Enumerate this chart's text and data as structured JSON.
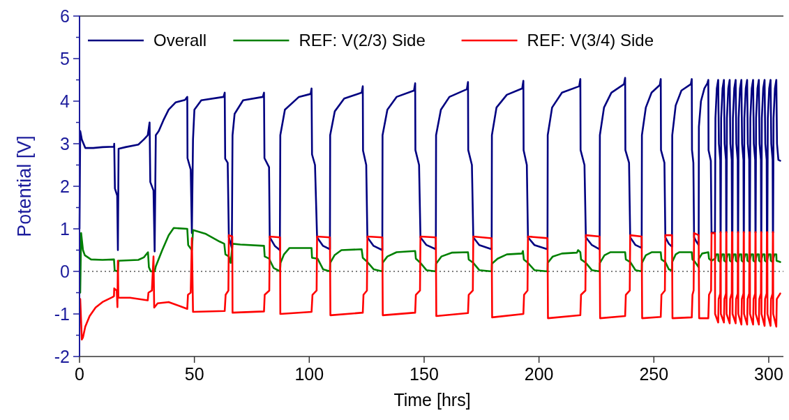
{
  "chart_data": {
    "type": "line",
    "xlabel": "Time [hrs]",
    "ylabel": "Potential [V]",
    "xlim": [
      0,
      307
    ],
    "xticks": [
      0,
      50,
      100,
      150,
      200,
      250,
      300
    ],
    "ylim": [
      -2,
      6
    ],
    "yticks": [
      -2,
      {
        "value": -1.5,
        "label": null
      },
      -1,
      {
        "value": -0.5,
        "label": null
      },
      0,
      {
        "value": 0.5,
        "label": null
      },
      1,
      {
        "value": 1.5,
        "label": null
      },
      2,
      {
        "value": 2.5,
        "label": null
      },
      3,
      {
        "value": 3.5,
        "label": null
      },
      4,
      {
        "value": 4.5,
        "label": null
      },
      5,
      {
        "value": 5.5,
        "label": null
      },
      6
    ],
    "legend": "top",
    "grid": false,
    "line_style": "solid",
    "marker": "none",
    "ref_lines": [
      {
        "axis": "y",
        "value": 0,
        "color": "#555555",
        "line_style": "dotted"
      }
    ],
    "series": [
      {
        "name": "Overall",
        "color": "#000080",
        "x": [
          0,
          0.3,
          1.0,
          2.5,
          6,
          10,
          15.0,
          15.1,
          15.4,
          16.4,
          16.7,
          17.0,
          20,
          25.6,
          28,
          29.7,
          30.5,
          30.8,
          32.2,
          32.7,
          33.2,
          34.5,
          36.5,
          38.8,
          41.8,
          45.9,
          46.9,
          47.0,
          48.4,
          48.9,
          49.4,
          50.0,
          53.0,
          62.7,
          63.2,
          63.4,
          64.5,
          65.0,
          66.3,
          66.6,
          67.5,
          71.2,
          79.8,
          80.3,
          80.5,
          82.5,
          82.8,
          85,
          87.2,
          87.4,
          89.4,
          95.5,
          100.6,
          101.0,
          101.2,
          102.5,
          103.4,
          106,
          109.0,
          109.1,
          111.1,
          115.2,
          122.8,
          123.3,
          123.4,
          124.8,
          125.3,
          128,
          131.8,
          131.9,
          134,
          138,
          145.6,
          146.1,
          146.2,
          147.8,
          148.4,
          151,
          155.1,
          155.2,
          157.3,
          161,
          168.6,
          169.1,
          169.2,
          170.8,
          171.4,
          174,
          179.4,
          179.5,
          181.5,
          186,
          192.7,
          193.2,
          193.3,
          194.7,
          195.2,
          198,
          203.7,
          203.8,
          205.7,
          210,
          217.5,
          218.0,
          218.1,
          219.8,
          220.4,
          223,
          226.4,
          226.5,
          228.3,
          231.5,
          237.0,
          237.5,
          237.6,
          239.2,
          239.7,
          242,
          244.7,
          244.8,
          246.5,
          249,
          252.6,
          253.0,
          253.1,
          254.6,
          255.0,
          256.5,
          257.9,
          258.0,
          259.5,
          262,
          266.1,
          266.5,
          266.6,
          267.2,
          267.5,
          268.5,
          269.5,
          269.6,
          270.5,
          272,
          273.3,
          273.7,
          273.8,
          274.8,
          275.1,
          276.6,
          276.8,
          277.4,
          278.0,
          278.3,
          278.9,
          279.0,
          279.1,
          279.3,
          279.9,
          280.5,
          280.8,
          281.4,
          281.5,
          281.6,
          281.8,
          282.4,
          283.0,
          283.3,
          283.9,
          284.0,
          284.2,
          284.4,
          285.0,
          285.6,
          285.9,
          286.5,
          286.6,
          286.7,
          286.9,
          287.5,
          288.1,
          288.4,
          289.0,
          289.1,
          289.2,
          289.4,
          290.0,
          290.6,
          290.9,
          291.5,
          291.6,
          291.8,
          292.0,
          292.6,
          293.2,
          293.5,
          294.1,
          294.2,
          294.3,
          294.5,
          295.1,
          295.7,
          296.0,
          296.6,
          296.7,
          296.8,
          297.0,
          297.6,
          298.2,
          298.5,
          299.1,
          299.2,
          299.4,
          299.6,
          300.2,
          300.8,
          301.1,
          301.7,
          301.8,
          301.9,
          302.1,
          302.7,
          303.3,
          303.6,
          304.2,
          305.0
        ],
        "values": [
          1.0,
          3.3,
          3.1,
          2.9,
          2.9,
          2.92,
          2.93,
          3.0,
          1.95,
          1.78,
          0.5,
          2.88,
          2.92,
          2.98,
          3.1,
          3.2,
          3.5,
          2.1,
          1.9,
          0.47,
          3.2,
          3.3,
          3.55,
          3.8,
          3.97,
          4.03,
          4.1,
          2.66,
          2.39,
          0.9,
          3.1,
          3.8,
          4.02,
          4.1,
          4.2,
          2.65,
          2.55,
          0.8,
          0.55,
          3.2,
          3.7,
          4.02,
          4.1,
          4.2,
          2.66,
          2.45,
          0.8,
          0.6,
          0.5,
          3.2,
          3.8,
          4.1,
          4.17,
          4.3,
          2.75,
          2.5,
          0.8,
          0.6,
          0.52,
          3.2,
          3.76,
          4.06,
          4.2,
          4.35,
          2.84,
          2.5,
          0.8,
          0.6,
          0.5,
          3.2,
          3.8,
          4.1,
          4.25,
          4.42,
          2.85,
          2.5,
          0.8,
          0.62,
          0.52,
          3.2,
          3.8,
          4.1,
          4.28,
          4.45,
          2.85,
          2.5,
          0.8,
          0.62,
          0.52,
          3.2,
          3.85,
          4.15,
          4.3,
          4.48,
          2.85,
          2.5,
          0.8,
          0.62,
          0.52,
          3.2,
          3.85,
          4.2,
          4.35,
          4.52,
          2.85,
          2.5,
          0.8,
          0.62,
          0.52,
          3.2,
          3.85,
          4.2,
          4.4,
          4.55,
          2.85,
          2.55,
          0.8,
          0.62,
          0.55,
          3.2,
          3.85,
          4.2,
          4.38,
          4.52,
          2.85,
          2.55,
          0.8,
          0.65,
          0.58,
          3.2,
          3.9,
          4.25,
          4.4,
          4.52,
          2.85,
          2.55,
          0.8,
          0.7,
          0.62,
          3.4,
          4.0,
          4.3,
          4.42,
          4.5,
          2.85,
          2.6,
          0.9,
          0.92,
          3.6,
          4.3,
          4.5,
          3.0,
          2.62,
          0.92,
          0.92,
          3.6,
          4.3,
          4.5,
          3.0,
          2.62,
          0.92,
          0.92,
          3.6,
          4.3,
          4.5,
          3.0,
          2.62,
          0.92,
          0.92,
          3.6,
          4.3,
          4.5,
          3.0,
          2.62,
          0.92,
          0.92,
          3.6,
          4.3,
          4.5,
          3.0,
          2.62,
          0.92,
          0.92,
          3.6,
          4.3,
          4.5,
          3.0,
          2.62,
          0.92,
          0.92,
          3.6,
          4.3,
          4.5,
          3.0,
          2.62,
          0.92,
          0.92,
          3.6,
          4.3,
          4.5,
          3.0,
          2.62,
          0.92,
          0.92,
          3.6,
          4.3,
          4.5,
          3.0,
          2.62,
          0.92,
          0.92,
          3.6,
          4.3,
          4.5,
          3.0,
          2.62,
          0.92,
          0.92,
          3.6,
          4.3,
          4.5,
          3.0,
          2.62,
          2.6
        ]
      },
      {
        "name": "REF: V(2/3) Side",
        "color": "#008000",
        "x": [
          0.3,
          0.7,
          1.5,
          2.3,
          5,
          10,
          15.0,
          15.3,
          16.7,
          17.0,
          25.6,
          28,
          29.8,
          30.2,
          31,
          32.7,
          33.2,
          36,
          38.8,
          41,
          46.9,
          47.3,
          48.9,
          49.4,
          55,
          61,
          63.0,
          63.5,
          65.0,
          65.8,
          66.6,
          70,
          80.3,
          80.6,
          82.5,
          84.5,
          87.3,
          87.5,
          89,
          91.4,
          101.0,
          101.2,
          103.6,
          106,
          109.0,
          109.1,
          111,
          114,
          122.8,
          123.3,
          125.3,
          128,
          131.8,
          131.9,
          134,
          138,
          146.1,
          146.4,
          148.4,
          151,
          155.1,
          155.2,
          157.5,
          162,
          169.1,
          169.4,
          171.4,
          174,
          179.4,
          179.5,
          182,
          186,
          192.6,
          193.0,
          193.4,
          195.2,
          198,
          203.7,
          203.8,
          206,
          210,
          216.5,
          217,
          218.0,
          218.3,
          220.4,
          223,
          226.4,
          226.5,
          228.5,
          231,
          237.5,
          237.8,
          239.7,
          242,
          244.7,
          244.8,
          246.5,
          249,
          253.0,
          253.3,
          255,
          256.5,
          257.9,
          258.0,
          259.5,
          261,
          266.5,
          266.8,
          267.5,
          269.5,
          269.6,
          271,
          273.7,
          274.0,
          275.1,
          276.7,
          277.2,
          278.0,
          278.1,
          279.0,
          279.2,
          279.7,
          280.5,
          280.6,
          281.5,
          281.7,
          282.2,
          283.0,
          283.1,
          284.0,
          284.3,
          284.8,
          285.6,
          285.7,
          286.6,
          286.8,
          287.3,
          288.1,
          288.2,
          289.1,
          289.3,
          289.8,
          290.6,
          290.7,
          291.6,
          291.9,
          292.4,
          293.2,
          293.3,
          294.2,
          294.4,
          294.9,
          295.7,
          295.8,
          296.7,
          296.9,
          297.4,
          298.2,
          298.3,
          299.2,
          299.5,
          300.0,
          300.8,
          300.9,
          301.8,
          302.0,
          302.5,
          303.3,
          303.4,
          305.0
        ],
        "values": [
          -0.5,
          0.9,
          0.5,
          0.38,
          0.28,
          0.27,
          0.28,
          0.02,
          0.0,
          0.25,
          0.27,
          0.33,
          0.45,
          0.1,
          0.0,
          0.0,
          0.12,
          0.5,
          0.85,
          1.02,
          1.0,
          0.62,
          0.5,
          0.97,
          0.88,
          0.7,
          0.65,
          0.4,
          0.35,
          0.2,
          0.65,
          0.63,
          0.6,
          0.35,
          0.3,
          0.08,
          0.0,
          0.2,
          0.4,
          0.55,
          0.55,
          0.32,
          0.3,
          0.05,
          0.0,
          0.2,
          0.38,
          0.5,
          0.52,
          0.32,
          0.22,
          0.05,
          0.0,
          0.2,
          0.35,
          0.45,
          0.48,
          0.3,
          0.2,
          0.03,
          0.0,
          0.18,
          0.35,
          0.44,
          0.45,
          0.28,
          0.2,
          0.03,
          0.0,
          0.18,
          0.3,
          0.4,
          0.42,
          0.48,
          0.28,
          0.2,
          0.03,
          0.0,
          0.2,
          0.35,
          0.42,
          0.44,
          0.5,
          0.45,
          0.28,
          0.2,
          0.03,
          0.0,
          0.2,
          0.38,
          0.45,
          0.45,
          0.28,
          0.22,
          0.03,
          0.0,
          0.2,
          0.38,
          0.45,
          0.45,
          0.28,
          0.22,
          0.05,
          0.02,
          0.22,
          0.4,
          0.45,
          0.45,
          0.28,
          0.25,
          0.1,
          0.3,
          0.42,
          0.45,
          0.3,
          0.25,
          0.3,
          0.4,
          0.4,
          0.25,
          0.22,
          0.3,
          0.4,
          0.4,
          0.25,
          0.22,
          0.3,
          0.4,
          0.4,
          0.25,
          0.22,
          0.3,
          0.4,
          0.4,
          0.25,
          0.22,
          0.3,
          0.4,
          0.4,
          0.25,
          0.22,
          0.3,
          0.4,
          0.4,
          0.25,
          0.22,
          0.3,
          0.4,
          0.4,
          0.25,
          0.22,
          0.3,
          0.4,
          0.4,
          0.25,
          0.22,
          0.3,
          0.4,
          0.4,
          0.25,
          0.22,
          0.3,
          0.4,
          0.4,
          0.25,
          0.22,
          0.3,
          0.4,
          0.4,
          0.25,
          0.22
        ]
      },
      {
        "name": "REF: V(3/4) Side",
        "color": "#ff0000",
        "x": [
          0.3,
          1.0,
          1.5,
          2.5,
          4.4,
          7,
          10,
          14.5,
          15.0,
          15.1,
          16.2,
          16.5,
          16.7,
          16.9,
          22,
          29.7,
          30.0,
          31.5,
          32.2,
          32.5,
          34,
          38.8,
          46.9,
          47.2,
          48.4,
          48.9,
          49.4,
          63.2,
          63.6,
          64.8,
          65.0,
          66.5,
          66.6,
          80.3,
          80.6,
          82.6,
          82.8,
          87.3,
          87.4,
          101.0,
          101.4,
          103.2,
          103.4,
          109.0,
          109.2,
          123.3,
          123.6,
          125.1,
          125.3,
          131.8,
          132.0,
          146.1,
          146.4,
          148.2,
          148.4,
          155.1,
          155.3,
          169.1,
          169.4,
          171.2,
          171.4,
          179.4,
          179.6,
          193.2,
          193.5,
          195.0,
          195.2,
          203.7,
          203.9,
          218.0,
          218.3,
          220.2,
          220.4,
          226.4,
          226.6,
          237.5,
          237.8,
          239.5,
          239.7,
          244.7,
          244.9,
          253.0,
          253.3,
          254.8,
          255.0,
          257.9,
          258.1,
          266.5,
          266.8,
          267.3,
          267.5,
          269.5,
          269.7,
          273.7,
          274.0,
          274.9,
          275.1,
          276.6,
          276.65,
          278.0,
          278.2,
          278.9,
          279.0,
          279.1,
          279.15,
          280.5,
          280.7,
          281.4,
          281.5,
          281.6,
          281.65,
          283.0,
          283.2,
          283.9,
          284.0,
          284.2,
          284.25,
          285.6,
          285.8,
          286.5,
          286.6,
          286.7,
          286.75,
          288.1,
          288.3,
          289.0,
          289.1,
          289.2,
          289.25,
          290.6,
          290.8,
          291.5,
          291.6,
          291.8,
          291.85,
          293.2,
          293.4,
          294.1,
          294.2,
          294.3,
          294.35,
          295.7,
          295.9,
          296.6,
          296.7,
          296.8,
          296.85,
          298.2,
          298.4,
          299.1,
          299.2,
          299.4,
          299.45,
          300.8,
          301.0,
          301.7,
          301.8,
          301.9,
          301.95,
          303.3,
          303.5,
          305.0
        ],
        "values": [
          -0.65,
          -1.6,
          -1.55,
          -1.3,
          -1.05,
          -0.85,
          -0.72,
          -0.6,
          -0.58,
          -0.4,
          -0.45,
          -0.84,
          0.25,
          -0.62,
          -0.62,
          -0.68,
          -0.5,
          -0.45,
          0.35,
          -0.85,
          -0.75,
          -0.72,
          -0.88,
          -0.55,
          -0.5,
          0.78,
          -0.95,
          -0.93,
          -0.55,
          -0.45,
          0.85,
          0.82,
          -0.97,
          -0.94,
          -0.55,
          -0.45,
          0.82,
          0.8,
          -1.0,
          -0.95,
          -0.55,
          -0.45,
          0.82,
          0.8,
          -1.03,
          -0.97,
          -0.55,
          -0.45,
          0.82,
          0.8,
          -1.03,
          -0.97,
          -0.55,
          -0.45,
          0.82,
          0.8,
          -1.05,
          -0.98,
          -0.55,
          -0.45,
          0.82,
          0.78,
          -1.08,
          -1.0,
          -0.55,
          -0.45,
          0.82,
          0.78,
          -1.1,
          -1.03,
          -0.55,
          -0.45,
          0.85,
          0.82,
          -1.1,
          -1.05,
          -0.55,
          -0.45,
          0.85,
          0.82,
          -1.1,
          -1.07,
          -0.55,
          -0.45,
          0.85,
          0.85,
          -1.1,
          -1.08,
          -0.55,
          -0.45,
          0.9,
          0.85,
          -1.1,
          -1.1,
          -0.55,
          -0.45,
          0.9,
          0.9,
          -1.0,
          -1.2,
          -0.65,
          -0.52,
          0.92,
          0.92,
          -1.0,
          -1.2,
          -0.65,
          -0.52,
          0.92,
          0.92,
          -1.0,
          -1.22,
          -0.65,
          -0.52,
          0.92,
          0.92,
          -1.0,
          -1.22,
          -0.65,
          -0.52,
          0.92,
          0.92,
          -1.0,
          -1.25,
          -0.65,
          -0.52,
          0.92,
          0.92,
          -1.0,
          -1.25,
          -0.65,
          -0.52,
          0.92,
          0.92,
          -1.0,
          -1.25,
          -0.65,
          -0.52,
          0.92,
          0.92,
          -1.0,
          -1.25,
          -0.65,
          -0.52,
          0.92,
          0.92,
          -1.0,
          -1.28,
          -0.65,
          -0.52,
          0.92,
          0.92,
          -1.0,
          -1.28,
          -0.65,
          -0.52,
          0.92,
          0.92,
          -1.0,
          -1.3,
          -0.65,
          -0.52
        ]
      }
    ]
  }
}
